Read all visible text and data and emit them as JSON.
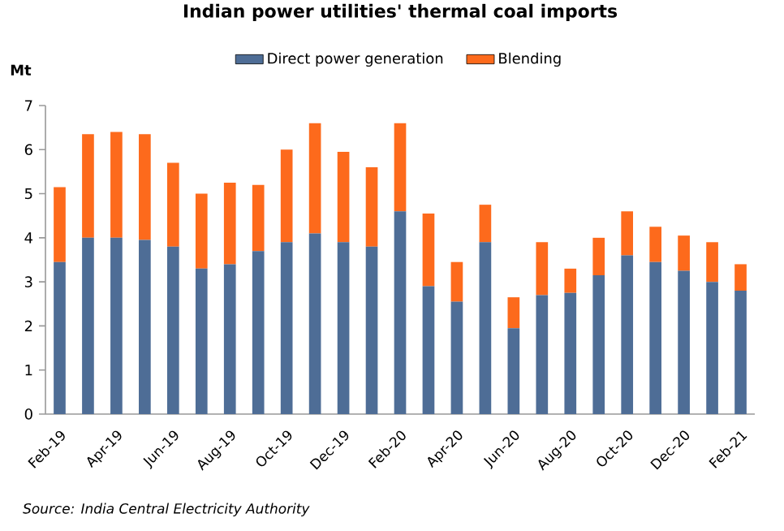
{
  "chart_data": {
    "type": "bar",
    "title": "Indian power utilities'  thermal coal imports",
    "ylabel": "Mt",
    "categories": [
      "Feb-19",
      null,
      "Apr-19",
      null,
      "Jun-19",
      null,
      "Aug-19",
      null,
      "Oct-19",
      null,
      "Dec-19",
      null,
      "Feb-20",
      null,
      "Apr-20",
      null,
      "Jun-20",
      null,
      "Aug-20",
      null,
      "Oct-20",
      null,
      "Dec-20",
      null,
      "Feb-21"
    ],
    "series": [
      {
        "name": "Direct power generation",
        "color": "#4e6d96",
        "values": [
          3.45,
          4.0,
          4.0,
          3.95,
          3.8,
          3.3,
          3.4,
          3.7,
          3.9,
          4.1,
          3.9,
          3.8,
          4.6,
          2.9,
          2.55,
          3.9,
          1.95,
          2.7,
          2.75,
          3.15,
          3.6,
          3.45,
          3.25,
          3.0,
          2.8
        ]
      },
      {
        "name": "Blending",
        "color": "#fd6a1c",
        "values": [
          1.7,
          2.35,
          2.4,
          2.4,
          1.9,
          1.7,
          1.85,
          1.5,
          2.1,
          2.5,
          2.05,
          1.8,
          2.0,
          1.65,
          0.9,
          0.85,
          0.7,
          1.2,
          0.55,
          0.85,
          1.0,
          0.8,
          0.8,
          0.9,
          0.6
        ]
      }
    ],
    "stacked": true,
    "legend": "top",
    "ylim": [
      0,
      7
    ],
    "yticks": [
      0,
      1,
      2,
      3,
      4,
      5,
      6,
      7
    ],
    "annotations": [
      "Source:  India Central Electricity  Authority"
    ]
  }
}
